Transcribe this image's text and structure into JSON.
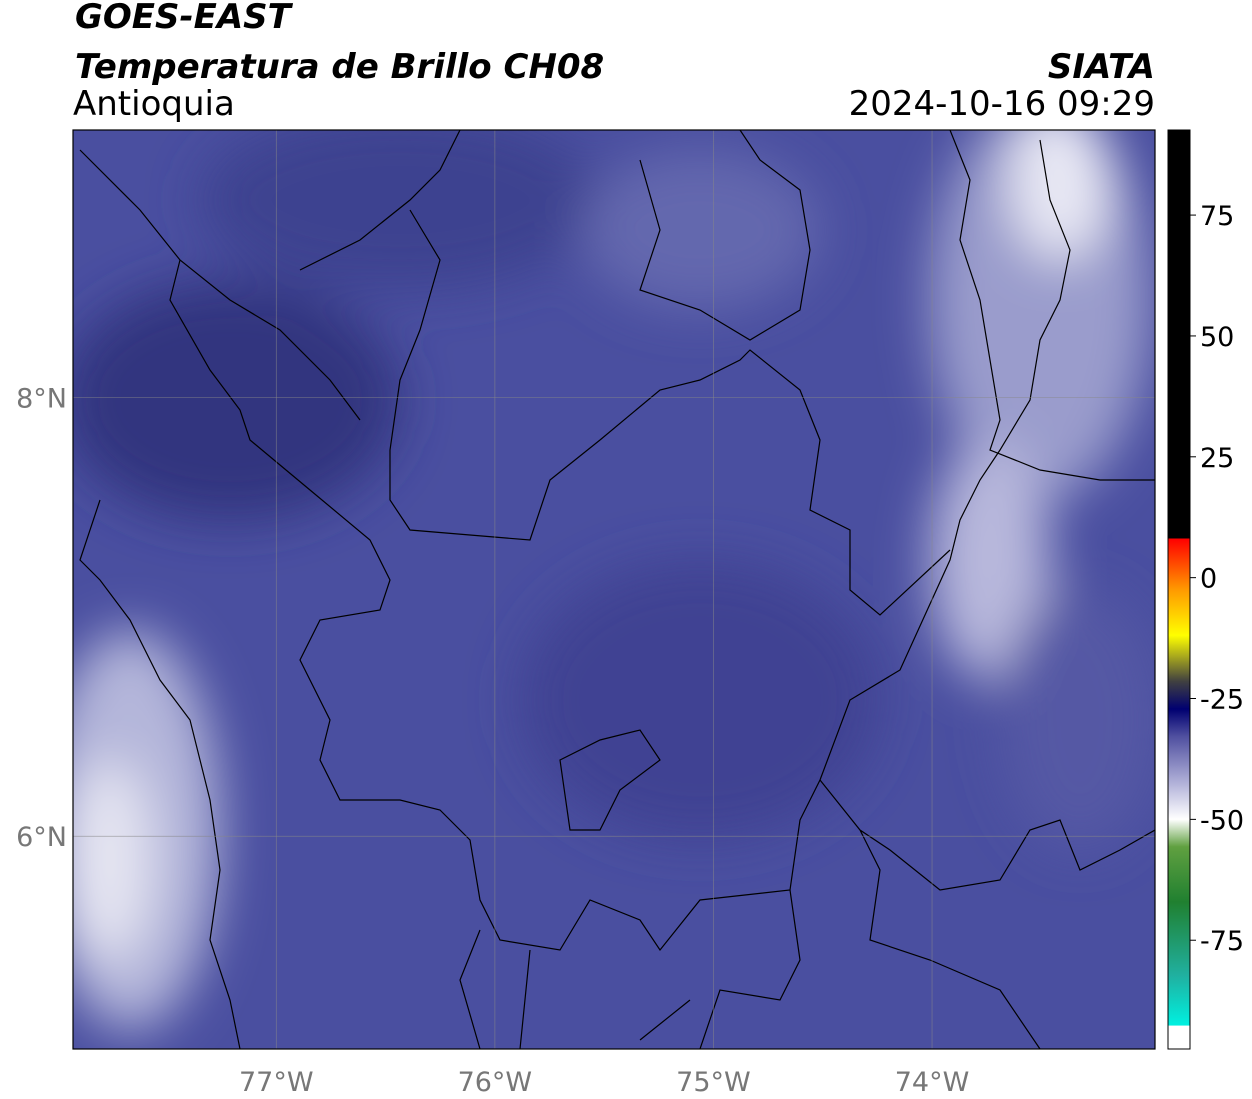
{
  "header": {
    "title1": "GOES-EAST",
    "title2": "Temperatura de Brillo CH08",
    "region": "Antioquia",
    "org": "SIATA",
    "datetime": "2024-10-16 09:29"
  },
  "map": {
    "lon_lim": [
      -77.93,
      -72.98
    ],
    "lat_lim": [
      5.03,
      9.22
    ],
    "lon_ticks": [
      {
        "value": -77,
        "label": "77°W"
      },
      {
        "value": -76,
        "label": "76°W"
      },
      {
        "value": -75,
        "label": "75°W"
      },
      {
        "value": -74,
        "label": "74°W"
      }
    ],
    "lat_ticks": [
      {
        "value": 8,
        "label": "8°N"
      },
      {
        "value": 6,
        "label": "6°N"
      }
    ]
  },
  "colorbar": {
    "lim": [
      -97.5,
      92.6
    ],
    "ticks": [
      75,
      50,
      25,
      0,
      -25,
      -50,
      -75
    ]
  }
}
